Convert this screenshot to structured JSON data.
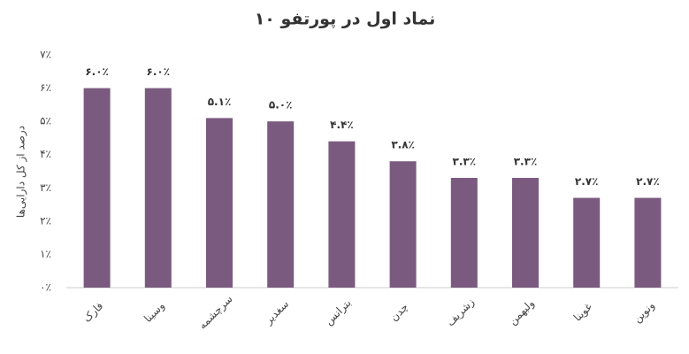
{
  "chart_data": {
    "type": "bar",
    "title": "۱۰ نماد اول در پورتفو",
    "y_label": "درصد از کل دارایی‌ها",
    "categories": [
      "فارک",
      "وسینا",
      "سرچشمه",
      "سغدیر",
      "بترانس",
      "چدن",
      "زشریف",
      "ولبهمن",
      "غوینا",
      "ونوین"
    ],
    "values": [
      6.0,
      6.0,
      5.1,
      5.0,
      4.4,
      3.8,
      3.3,
      3.3,
      2.7,
      2.7
    ],
    "value_labels": [
      "۶.۰٪",
      "۶.۰٪",
      "۵.۱٪",
      "۵.۰٪",
      "۴.۴٪",
      "۳.۸٪",
      "۳.۳٪",
      "۳.۳٪",
      "۲.۷٪",
      "۲.۷٪"
    ],
    "color": "#7b5a80",
    "ylim": [
      0,
      7
    ],
    "yticks": [
      {
        "value": 0,
        "label": "۰٪"
      },
      {
        "value": 1,
        "label": "۱٪"
      },
      {
        "value": 2,
        "label": "۲٪"
      },
      {
        "value": 3,
        "label": "۳٪"
      },
      {
        "value": 4,
        "label": "۴٪"
      },
      {
        "value": 5,
        "label": "۵٪"
      },
      {
        "value": 6,
        "label": "۶٪"
      },
      {
        "value": 7,
        "label": "۷٪"
      }
    ],
    "grid": false
  }
}
